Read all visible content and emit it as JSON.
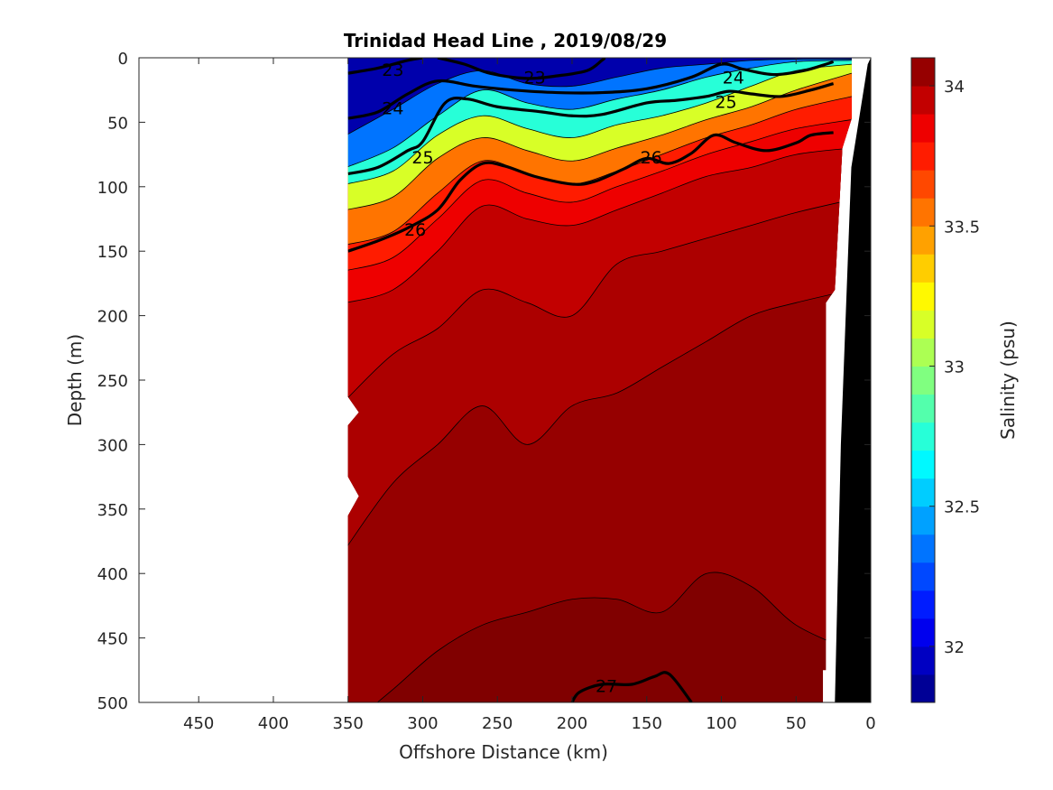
{
  "chart_data": {
    "type": "heatmap",
    "title": "Trinidad Head Line , 2019/08/29",
    "xlabel": "Offshore Distance (km)",
    "ylabel": "Depth (m)",
    "colorbar_label": "Salinity (psu)",
    "x_reversed": true,
    "y_reversed": true,
    "xlim": [
      0,
      490
    ],
    "ylim": [
      0,
      500
    ],
    "x_ticks": [
      450,
      400,
      350,
      300,
      250,
      200,
      150,
      100,
      50,
      0
    ],
    "y_ticks": [
      0,
      50,
      100,
      150,
      200,
      250,
      300,
      350,
      400,
      450,
      500
    ],
    "colorbar_range": [
      31.8,
      34.1
    ],
    "colorbar_ticks": [
      32,
      32.5,
      33,
      33.5,
      34
    ],
    "colormap": "jet",
    "data_extent_km": [
      20,
      350
    ],
    "salinity_contour_levels": [
      32.4,
      32.8,
      33.2,
      33.6,
      33.8,
      33.9,
      34.0,
      34.05,
      34.1
    ],
    "salinity_profiles": [
      {
        "x": 350,
        "levels": [
          {
            "s": 32.0,
            "z": 60
          },
          {
            "s": 32.4,
            "z": 85
          },
          {
            "s": 32.8,
            "z": 98
          },
          {
            "s": 33.2,
            "z": 118
          },
          {
            "s": 33.6,
            "z": 145
          },
          {
            "s": 33.8,
            "z": 165
          },
          {
            "s": 33.9,
            "z": 190
          },
          {
            "s": 34.0,
            "z": 265
          },
          {
            "s": 34.05,
            "z": 380
          },
          {
            "s": 34.1,
            "z": 520
          }
        ]
      },
      {
        "x": 320,
        "levels": [
          {
            "s": 32.0,
            "z": 40
          },
          {
            "s": 32.4,
            "z": 70
          },
          {
            "s": 32.8,
            "z": 88
          },
          {
            "s": 33.2,
            "z": 108
          },
          {
            "s": 33.6,
            "z": 135
          },
          {
            "s": 33.8,
            "z": 155
          },
          {
            "s": 33.9,
            "z": 180
          },
          {
            "s": 34.0,
            "z": 230
          },
          {
            "s": 34.05,
            "z": 330
          },
          {
            "s": 34.1,
            "z": 490
          }
        ]
      },
      {
        "x": 290,
        "levels": [
          {
            "s": 32.0,
            "z": 20
          },
          {
            "s": 32.4,
            "z": 45
          },
          {
            "s": 32.8,
            "z": 60
          },
          {
            "s": 33.2,
            "z": 78
          },
          {
            "s": 33.6,
            "z": 105
          },
          {
            "s": 33.8,
            "z": 125
          },
          {
            "s": 33.9,
            "z": 150
          },
          {
            "s": 34.0,
            "z": 210
          },
          {
            "s": 34.05,
            "z": 300
          },
          {
            "s": 34.1,
            "z": 460
          }
        ]
      },
      {
        "x": 260,
        "levels": [
          {
            "s": 32.0,
            "z": 10
          },
          {
            "s": 32.4,
            "z": 25
          },
          {
            "s": 32.8,
            "z": 45
          },
          {
            "s": 33.2,
            "z": 62
          },
          {
            "s": 33.6,
            "z": 80
          },
          {
            "s": 33.8,
            "z": 95
          },
          {
            "s": 33.9,
            "z": 115
          },
          {
            "s": 34.0,
            "z": 180
          },
          {
            "s": 34.05,
            "z": 270
          },
          {
            "s": 34.1,
            "z": 440
          }
        ]
      },
      {
        "x": 230,
        "levels": [
          {
            "s": 32.0,
            "z": 20
          },
          {
            "s": 32.4,
            "z": 35
          },
          {
            "s": 32.8,
            "z": 55
          },
          {
            "s": 33.2,
            "z": 72
          },
          {
            "s": 33.6,
            "z": 90
          },
          {
            "s": 33.8,
            "z": 105
          },
          {
            "s": 33.9,
            "z": 125
          },
          {
            "s": 34.0,
            "z": 190
          },
          {
            "s": 34.05,
            "z": 300
          },
          {
            "s": 34.1,
            "z": 430
          }
        ]
      },
      {
        "x": 200,
        "levels": [
          {
            "s": 32.0,
            "z": 22
          },
          {
            "s": 32.4,
            "z": 40
          },
          {
            "s": 32.8,
            "z": 62
          },
          {
            "s": 33.2,
            "z": 80
          },
          {
            "s": 33.6,
            "z": 98
          },
          {
            "s": 33.8,
            "z": 112
          },
          {
            "s": 33.9,
            "z": 130
          },
          {
            "s": 34.0,
            "z": 200
          },
          {
            "s": 34.05,
            "z": 270
          },
          {
            "s": 34.1,
            "z": 420
          }
        ]
      },
      {
        "x": 170,
        "levels": [
          {
            "s": 32.0,
            "z": 15
          },
          {
            "s": 32.4,
            "z": 32
          },
          {
            "s": 32.8,
            "z": 52
          },
          {
            "s": 33.2,
            "z": 70
          },
          {
            "s": 33.6,
            "z": 88
          },
          {
            "s": 33.8,
            "z": 100
          },
          {
            "s": 33.9,
            "z": 118
          },
          {
            "s": 34.0,
            "z": 160
          },
          {
            "s": 34.05,
            "z": 260
          },
          {
            "s": 34.1,
            "z": 420
          }
        ]
      },
      {
        "x": 140,
        "levels": [
          {
            "s": 32.0,
            "z": 8
          },
          {
            "s": 32.4,
            "z": 25
          },
          {
            "s": 32.8,
            "z": 45
          },
          {
            "s": 33.2,
            "z": 60
          },
          {
            "s": 33.6,
            "z": 75
          },
          {
            "s": 33.8,
            "z": 88
          },
          {
            "s": 33.9,
            "z": 105
          },
          {
            "s": 34.0,
            "z": 150
          },
          {
            "s": 34.05,
            "z": 240
          },
          {
            "s": 34.1,
            "z": 430
          }
        ]
      },
      {
        "x": 110,
        "levels": [
          {
            "s": 32.0,
            "z": 5
          },
          {
            "s": 32.4,
            "z": 15
          },
          {
            "s": 32.8,
            "z": 35
          },
          {
            "s": 33.2,
            "z": 48
          },
          {
            "s": 33.6,
            "z": 62
          },
          {
            "s": 33.8,
            "z": 75
          },
          {
            "s": 33.9,
            "z": 92
          },
          {
            "s": 34.0,
            "z": 140
          },
          {
            "s": 34.05,
            "z": 220
          },
          {
            "s": 34.1,
            "z": 400
          }
        ]
      },
      {
        "x": 80,
        "levels": [
          {
            "s": 32.0,
            "z": 2
          },
          {
            "s": 32.4,
            "z": 8
          },
          {
            "s": 32.8,
            "z": 22
          },
          {
            "s": 33.2,
            "z": 38
          },
          {
            "s": 33.6,
            "z": 52
          },
          {
            "s": 33.8,
            "z": 65
          },
          {
            "s": 33.9,
            "z": 85
          },
          {
            "s": 34.0,
            "z": 130
          },
          {
            "s": 34.05,
            "z": 200
          },
          {
            "s": 34.1,
            "z": 410
          }
        ]
      },
      {
        "x": 50,
        "levels": [
          {
            "s": 32.0,
            "z": 1
          },
          {
            "s": 32.4,
            "z": 3
          },
          {
            "s": 32.8,
            "z": 10
          },
          {
            "s": 33.2,
            "z": 25
          },
          {
            "s": 33.6,
            "z": 40
          },
          {
            "s": 33.8,
            "z": 55
          },
          {
            "s": 33.9,
            "z": 75
          },
          {
            "s": 34.0,
            "z": 120
          },
          {
            "s": 34.05,
            "z": 190
          },
          {
            "s": 34.1,
            "z": 440
          }
        ]
      },
      {
        "x": 20,
        "levels": [
          {
            "s": 32.0,
            "z": 1
          },
          {
            "s": 32.4,
            "z": 2
          },
          {
            "s": 32.8,
            "z": 5
          },
          {
            "s": 33.2,
            "z": 12
          },
          {
            "s": 33.6,
            "z": 30
          },
          {
            "s": 33.8,
            "z": 48
          },
          {
            "s": 33.9,
            "z": 70
          },
          {
            "s": 34.0,
            "z": 110
          },
          {
            "s": 34.05,
            "z": 180
          },
          {
            "s": 34.1,
            "z": 460
          }
        ]
      }
    ],
    "density_contours": [
      {
        "level": "23",
        "points": [
          [
            350,
            12
          ],
          [
            330,
            8
          ],
          [
            310,
            2
          ],
          [
            300,
            0
          ]
        ]
      },
      {
        "level": "23",
        "points": [
          [
            290,
            0
          ],
          [
            272,
            5
          ],
          [
            255,
            12
          ],
          [
            230,
            16
          ],
          [
            210,
            14
          ],
          [
            190,
            10
          ],
          [
            180,
            2
          ],
          [
            178,
            0
          ]
        ]
      },
      {
        "level": "24",
        "points": [
          [
            350,
            47
          ],
          [
            330,
            42
          ],
          [
            310,
            28
          ],
          [
            290,
            18
          ],
          [
            265,
            22
          ],
          [
            240,
            25
          ],
          [
            210,
            27
          ],
          [
            180,
            27
          ],
          [
            150,
            24
          ],
          [
            120,
            15
          ],
          [
            100,
            5
          ],
          [
            85,
            9
          ],
          [
            65,
            13
          ],
          [
            45,
            10
          ],
          [
            30,
            5
          ],
          [
            25,
            3
          ]
        ]
      },
      {
        "level": "25",
        "points": [
          [
            350,
            90
          ],
          [
            330,
            85
          ],
          [
            310,
            72
          ],
          [
            300,
            65
          ],
          [
            285,
            35
          ],
          [
            270,
            32
          ],
          [
            250,
            38
          ],
          [
            220,
            42
          ],
          [
            200,
            45
          ],
          [
            180,
            44
          ],
          [
            150,
            35
          ],
          [
            130,
            33
          ],
          [
            110,
            30
          ],
          [
            95,
            26
          ],
          [
            80,
            28
          ],
          [
            60,
            30
          ],
          [
            40,
            25
          ],
          [
            25,
            20
          ]
        ]
      },
      {
        "level": "26",
        "points": [
          [
            350,
            150
          ],
          [
            330,
            142
          ],
          [
            310,
            132
          ],
          [
            290,
            118
          ],
          [
            275,
            95
          ],
          [
            260,
            82
          ],
          [
            245,
            84
          ],
          [
            225,
            92
          ],
          [
            200,
            98
          ],
          [
            185,
            96
          ],
          [
            165,
            86
          ],
          [
            150,
            78
          ],
          [
            135,
            82
          ],
          [
            120,
            74
          ],
          [
            105,
            60
          ],
          [
            90,
            66
          ],
          [
            70,
            72
          ],
          [
            50,
            66
          ],
          [
            40,
            60
          ],
          [
            25,
            58
          ]
        ]
      },
      {
        "level": "27",
        "points": [
          [
            200,
            500
          ],
          [
            195,
            492
          ],
          [
            180,
            486
          ],
          [
            160,
            486
          ],
          [
            145,
            480
          ],
          [
            135,
            478
          ],
          [
            120,
            500
          ]
        ]
      }
    ],
    "density_labels": [
      {
        "text": "23",
        "x": 320,
        "y": 9
      },
      {
        "text": "23",
        "x": 225,
        "y": 15
      },
      {
        "text": "24",
        "x": 320,
        "y": 39
      },
      {
        "text": "24",
        "x": 92,
        "y": 15
      },
      {
        "text": "25",
        "x": 300,
        "y": 77
      },
      {
        "text": "25",
        "x": 97,
        "y": 34
      },
      {
        "text": "26",
        "x": 305,
        "y": 133
      },
      {
        "text": "26",
        "x": 147,
        "y": 77
      },
      {
        "text": "27",
        "x": 177,
        "y": 487
      }
    ]
  }
}
